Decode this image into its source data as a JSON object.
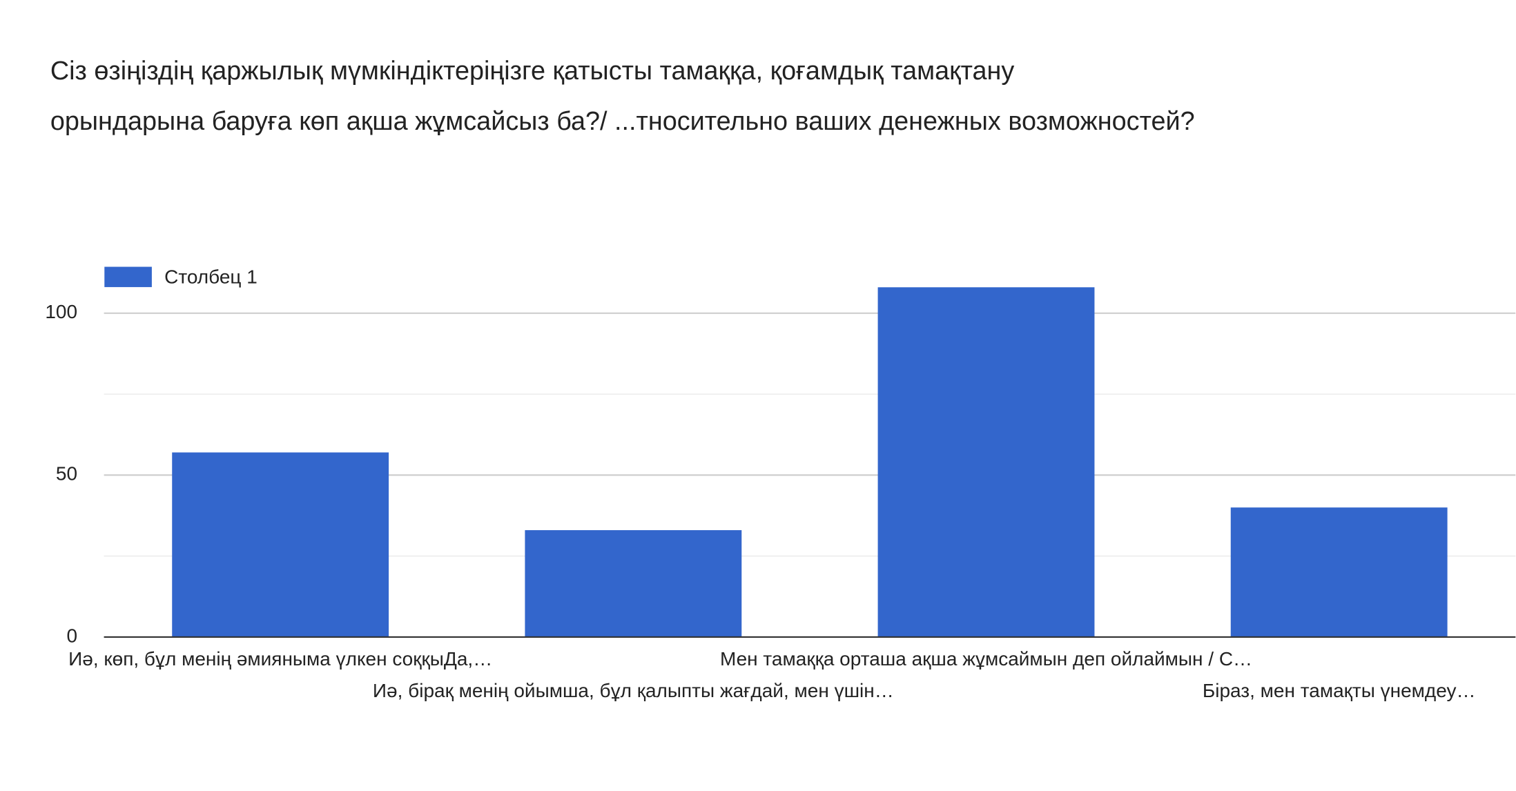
{
  "chart_data": {
    "type": "bar",
    "title": [
      "Сіз өзіңіздің қаржылық мүмкіндіктеріңізге қатысты тамаққа, қоғамдық тамақтану",
      "орындарына баруға көп ақша жұмсайсыз ба?/ ...тносительно ваших денежных возможностей?"
    ],
    "categories": [
      "Иә, көп, бұл менің әмияныма үлкен соққыДа,…",
      "Иә, бірақ менің ойымша, бұл қалыпты жағдай, мен үшін…",
      "Мен тамаққа орташа ақша жұмсаймын деп ойлаймын / С…",
      "Біраз, мен тамақты үнемдеу…"
    ],
    "series": [
      {
        "name": "Столбец 1",
        "color": "#3366cc",
        "values": [
          57,
          33,
          108,
          40
        ]
      }
    ],
    "ylim": [
      0,
      110
    ],
    "yticks": [
      0,
      50,
      100
    ],
    "minor_yticks": [
      25,
      75
    ],
    "grid": true,
    "legend": "top-left"
  }
}
